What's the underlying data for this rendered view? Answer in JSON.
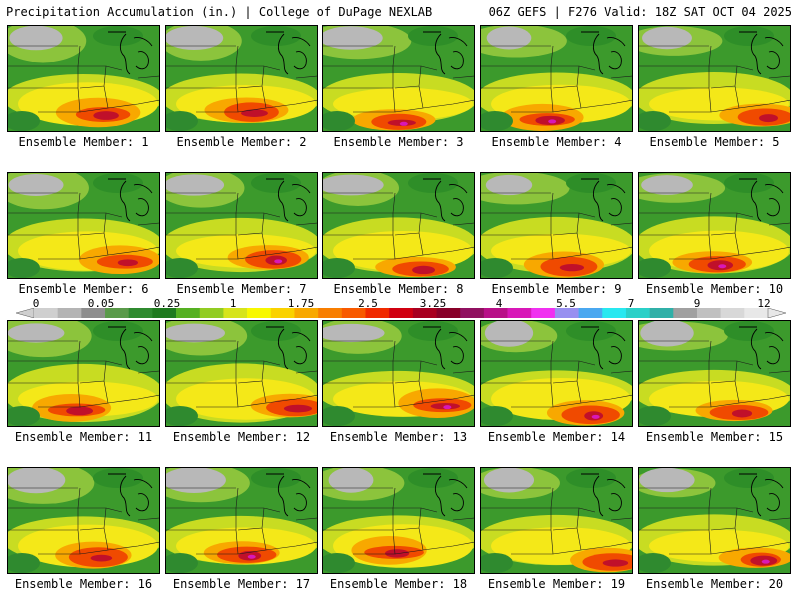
{
  "header": {
    "left": "Precipitation Accumulation (in.) | College of DuPage NEXLAB",
    "right": "06Z GEFS | F276 Valid: 18Z SAT OCT 04 2025"
  },
  "legend": {
    "ticks": [
      "0",
      "0.05",
      "0.25",
      "1",
      "1.75",
      "2.5",
      "3.25",
      "4",
      "5.5",
      "7",
      "9",
      "12"
    ],
    "colors": [
      "#cfcfcf",
      "#b4b4b4",
      "#8e8e8e",
      "#5a9a4a",
      "#2f8a2f",
      "#1f7a1f",
      "#55b022",
      "#92cc22",
      "#d6e41c",
      "#f8f800",
      "#fad200",
      "#f8a800",
      "#f87e00",
      "#f85a00",
      "#f02a00",
      "#d00010",
      "#a80020",
      "#880028",
      "#901060",
      "#b81088",
      "#d818b8",
      "#f030f0",
      "#9890f0",
      "#4aa8f0",
      "#28e8f0",
      "#2ad0c8",
      "#30b0a8",
      "#a0a0a0",
      "#c0c0c0",
      "#d8d8d8",
      "#e8e8e8"
    ]
  },
  "members": [
    {
      "label": "Ensemble Member: 1"
    },
    {
      "label": "Ensemble Member: 2"
    },
    {
      "label": "Ensemble Member: 3"
    },
    {
      "label": "Ensemble Member: 4"
    },
    {
      "label": "Ensemble Member: 5"
    },
    {
      "label": "Ensemble Member: 6"
    },
    {
      "label": "Ensemble Member: 7"
    },
    {
      "label": "Ensemble Member: 8"
    },
    {
      "label": "Ensemble Member: 9"
    },
    {
      "label": "Ensemble Member: 10"
    },
    {
      "label": "Ensemble Member: 11"
    },
    {
      "label": "Ensemble Member: 12"
    },
    {
      "label": "Ensemble Member: 13"
    },
    {
      "label": "Ensemble Member: 14"
    },
    {
      "label": "Ensemble Member: 15"
    },
    {
      "label": "Ensemble Member: 16"
    },
    {
      "label": "Ensemble Member: 17"
    },
    {
      "label": "Ensemble Member: 18"
    },
    {
      "label": "Ensemble Member: 19"
    },
    {
      "label": "Ensemble Member: 20"
    }
  ]
}
